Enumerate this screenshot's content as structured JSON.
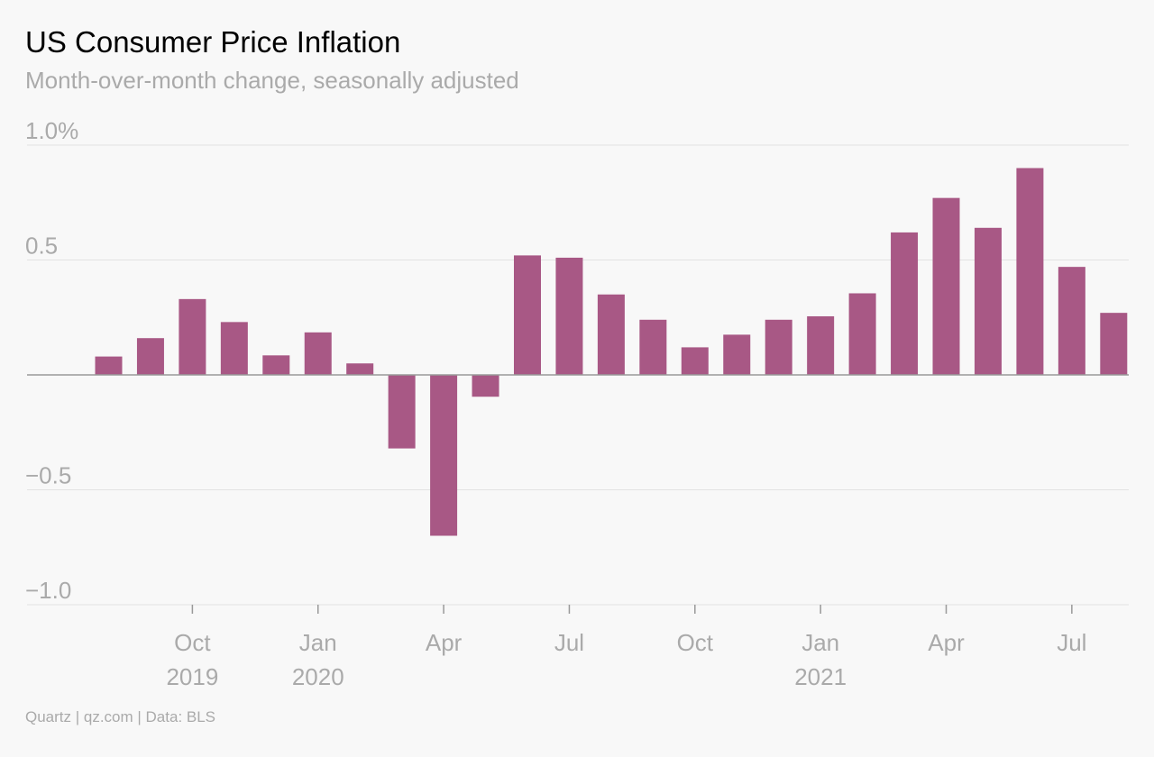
{
  "chart_data": {
    "type": "bar",
    "title": "US Consumer Price Inflation",
    "subtitle": "Month-over-month change, seasonally adjusted",
    "source": "Quartz | qz.com | Data: BLS",
    "categories": [
      "2019-08",
      "2019-09",
      "2019-10",
      "2019-11",
      "2019-12",
      "2020-01",
      "2020-02",
      "2020-03",
      "2020-04",
      "2020-05",
      "2020-06",
      "2020-07",
      "2020-08",
      "2020-09",
      "2020-10",
      "2020-11",
      "2020-12",
      "2021-01",
      "2021-02",
      "2021-03",
      "2021-04",
      "2021-05",
      "2021-06",
      "2021-07",
      "2021-08"
    ],
    "values": [
      0.08,
      0.16,
      0.33,
      0.23,
      0.085,
      0.185,
      0.05,
      -0.32,
      -0.7,
      -0.095,
      0.52,
      0.51,
      0.35,
      0.24,
      0.12,
      0.175,
      0.24,
      0.255,
      0.355,
      0.62,
      0.77,
      0.64,
      0.9,
      0.47,
      0.27
    ],
    "ylim": [
      -1.0,
      1.0
    ],
    "yticks": [
      {
        "value": 1.0,
        "label": "1.0%"
      },
      {
        "value": 0.5,
        "label": "0.5"
      },
      {
        "value": -0.5,
        "label": "−0.5"
      },
      {
        "value": -1.0,
        "label": "−1.0"
      }
    ],
    "xticks": [
      {
        "index": 2,
        "label": "Oct",
        "year": "2019"
      },
      {
        "index": 5,
        "label": "Jan",
        "year": "2020"
      },
      {
        "index": 8,
        "label": "Apr",
        "year": ""
      },
      {
        "index": 11,
        "label": "Jul",
        "year": ""
      },
      {
        "index": 14,
        "label": "Oct",
        "year": ""
      },
      {
        "index": 17,
        "label": "Jan",
        "year": "2021"
      },
      {
        "index": 20,
        "label": "Apr",
        "year": ""
      },
      {
        "index": 23,
        "label": "Jul",
        "year": ""
      }
    ],
    "xlabel": "",
    "ylabel": "",
    "grid": true,
    "bar_color": "#a85885",
    "grid_color": "#e2e2e2",
    "zero_line_color": "#999999",
    "tick_label_color": "#aaaaaa"
  }
}
